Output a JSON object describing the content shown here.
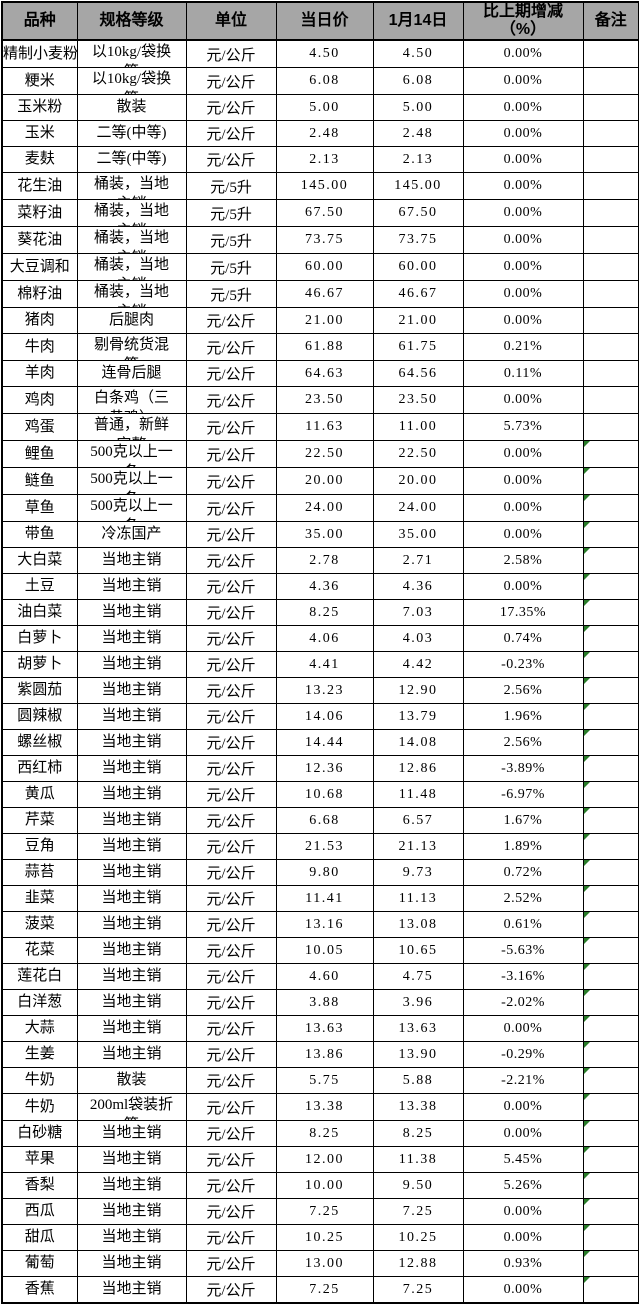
{
  "colors": {
    "header_bg": "#a6a6a6",
    "border": "#000000",
    "marker_green": "#2a7d2a",
    "page_bg": "#ffffff"
  },
  "table": {
    "columns": [
      {
        "id": "variety",
        "label": "品种"
      },
      {
        "id": "spec",
        "label": "规格等级"
      },
      {
        "id": "unit",
        "label": "单位"
      },
      {
        "id": "today",
        "label": "当日价"
      },
      {
        "id": "prev",
        "label": "1月14日"
      },
      {
        "id": "change",
        "label": "比上期增减\n（%）"
      },
      {
        "id": "remark",
        "label": "备注"
      }
    ],
    "rows": [
      {
        "name": "精制小麦粉",
        "spec": "以10kg/袋换",
        "spec2": "算",
        "unit": "元/公斤",
        "today": "4.50",
        "prev": "4.50",
        "change": "0.00%",
        "marker": false
      },
      {
        "name": "粳米",
        "spec": "以10kg/袋换",
        "spec2": "算",
        "unit": "元/公斤",
        "today": "6.08",
        "prev": "6.08",
        "change": "0.00%",
        "marker": false
      },
      {
        "name": "玉米粉",
        "spec": "散装",
        "spec2": "",
        "unit": "元/公斤",
        "today": "5.00",
        "prev": "5.00",
        "change": "0.00%",
        "marker": false
      },
      {
        "name": "玉米",
        "spec": "二等(中等)",
        "spec2": "",
        "unit": "元/公斤",
        "today": "2.48",
        "prev": "2.48",
        "change": "0.00%",
        "marker": false
      },
      {
        "name": "麦麸",
        "spec": "二等(中等)",
        "spec2": "",
        "unit": "元/公斤",
        "today": "2.13",
        "prev": "2.13",
        "change": "0.00%",
        "marker": false
      },
      {
        "name": "花生油",
        "spec": "桶装，当地",
        "spec2": "主销",
        "unit": "元/5升",
        "today": "145.00",
        "prev": "145.00",
        "change": "0.00%",
        "marker": false
      },
      {
        "name": "菜籽油",
        "spec": "桶装，当地",
        "spec2": "主销",
        "unit": "元/5升",
        "today": "67.50",
        "prev": "67.50",
        "change": "0.00%",
        "marker": false
      },
      {
        "name": "葵花油",
        "spec": "桶装，当地",
        "spec2": "主销",
        "unit": "元/5升",
        "today": "73.75",
        "prev": "73.75",
        "change": "0.00%",
        "marker": false
      },
      {
        "name": "大豆调和",
        "spec": "桶装，当地",
        "spec2": "主销",
        "unit": "元/5升",
        "today": "60.00",
        "prev": "60.00",
        "change": "0.00%",
        "marker": false
      },
      {
        "name": "棉籽油",
        "spec": "桶装，当地",
        "spec2": "主销",
        "unit": "元/5升",
        "today": "46.67",
        "prev": "46.67",
        "change": "0.00%",
        "marker": false
      },
      {
        "name": "猪肉",
        "spec": "后腿肉",
        "spec2": "",
        "unit": "元/公斤",
        "today": "21.00",
        "prev": "21.00",
        "change": "0.00%",
        "marker": false
      },
      {
        "name": "牛肉",
        "spec": "剔骨统货混",
        "spec2": "等",
        "unit": "元/公斤",
        "today": "61.88",
        "prev": "61.75",
        "change": "0.21%",
        "marker": false
      },
      {
        "name": "羊肉",
        "spec": "连骨后腿",
        "spec2": "",
        "unit": "元/公斤",
        "today": "64.63",
        "prev": "64.56",
        "change": "0.11%",
        "marker": false
      },
      {
        "name": "鸡肉",
        "spec": "白条鸡（三",
        "spec2": "黄鸡）",
        "unit": "元/公斤",
        "today": "23.50",
        "prev": "23.50",
        "change": "0.00%",
        "marker": false
      },
      {
        "name": "鸡蛋",
        "spec": "普通，新鲜",
        "spec2": "完整",
        "unit": "元/公斤",
        "today": "11.63",
        "prev": "11.00",
        "change": "5.73%",
        "marker": false
      },
      {
        "name": "鲤鱼",
        "spec": "500克以上一",
        "spec2": "条",
        "unit": "元/公斤",
        "today": "22.50",
        "prev": "22.50",
        "change": "0.00%",
        "marker": true
      },
      {
        "name": "鲢鱼",
        "spec": "500克以上一",
        "spec2": "条",
        "unit": "元/公斤",
        "today": "20.00",
        "prev": "20.00",
        "change": "0.00%",
        "marker": true
      },
      {
        "name": "草鱼",
        "spec": "500克以上一",
        "spec2": "条",
        "unit": "元/公斤",
        "today": "24.00",
        "prev": "24.00",
        "change": "0.00%",
        "marker": true
      },
      {
        "name": "带鱼",
        "spec": "冷冻国产",
        "spec2": "",
        "unit": "元/公斤",
        "today": "35.00",
        "prev": "35.00",
        "change": "0.00%",
        "marker": true
      },
      {
        "name": "大白菜",
        "spec": "当地主销",
        "spec2": "",
        "unit": "元/公斤",
        "today": "2.78",
        "prev": "2.71",
        "change": "2.58%",
        "marker": true
      },
      {
        "name": "土豆",
        "spec": "当地主销",
        "spec2": "",
        "unit": "元/公斤",
        "today": "4.36",
        "prev": "4.36",
        "change": "0.00%",
        "marker": true
      },
      {
        "name": "油白菜",
        "spec": "当地主销",
        "spec2": "",
        "unit": "元/公斤",
        "today": "8.25",
        "prev": "7.03",
        "change": "17.35%",
        "marker": true
      },
      {
        "name": "白萝卜",
        "spec": "当地主销",
        "spec2": "",
        "unit": "元/公斤",
        "today": "4.06",
        "prev": "4.03",
        "change": "0.74%",
        "marker": true
      },
      {
        "name": "胡萝卜",
        "spec": "当地主销",
        "spec2": "",
        "unit": "元/公斤",
        "today": "4.41",
        "prev": "4.42",
        "change": "-0.23%",
        "marker": true
      },
      {
        "name": "紫圆茄",
        "spec": "当地主销",
        "spec2": "",
        "unit": "元/公斤",
        "today": "13.23",
        "prev": "12.90",
        "change": "2.56%",
        "marker": true
      },
      {
        "name": "圆辣椒",
        "spec": "当地主销",
        "spec2": "",
        "unit": "元/公斤",
        "today": "14.06",
        "prev": "13.79",
        "change": "1.96%",
        "marker": true
      },
      {
        "name": "螺丝椒",
        "spec": "当地主销",
        "spec2": "",
        "unit": "元/公斤",
        "today": "14.44",
        "prev": "14.08",
        "change": "2.56%",
        "marker": true
      },
      {
        "name": "西红柿",
        "spec": "当地主销",
        "spec2": "",
        "unit": "元/公斤",
        "today": "12.36",
        "prev": "12.86",
        "change": "-3.89%",
        "marker": true
      },
      {
        "name": "黄瓜",
        "spec": "当地主销",
        "spec2": "",
        "unit": "元/公斤",
        "today": "10.68",
        "prev": "11.48",
        "change": "-6.97%",
        "marker": true
      },
      {
        "name": "芹菜",
        "spec": "当地主销",
        "spec2": "",
        "unit": "元/公斤",
        "today": "6.68",
        "prev": "6.57",
        "change": "1.67%",
        "marker": true
      },
      {
        "name": "豆角",
        "spec": "当地主销",
        "spec2": "",
        "unit": "元/公斤",
        "today": "21.53",
        "prev": "21.13",
        "change": "1.89%",
        "marker": true
      },
      {
        "name": "蒜苔",
        "spec": "当地主销",
        "spec2": "",
        "unit": "元/公斤",
        "today": "9.80",
        "prev": "9.73",
        "change": "0.72%",
        "marker": true
      },
      {
        "name": "韭菜",
        "spec": "当地主销",
        "spec2": "",
        "unit": "元/公斤",
        "today": "11.41",
        "prev": "11.13",
        "change": "2.52%",
        "marker": true
      },
      {
        "name": "菠菜",
        "spec": "当地主销",
        "spec2": "",
        "unit": "元/公斤",
        "today": "13.16",
        "prev": "13.08",
        "change": "0.61%",
        "marker": true
      },
      {
        "name": "花菜",
        "spec": "当地主销",
        "spec2": "",
        "unit": "元/公斤",
        "today": "10.05",
        "prev": "10.65",
        "change": "-5.63%",
        "marker": true
      },
      {
        "name": "莲花白",
        "spec": "当地主销",
        "spec2": "",
        "unit": "元/公斤",
        "today": "4.60",
        "prev": "4.75",
        "change": "-3.16%",
        "marker": true
      },
      {
        "name": "白洋葱",
        "spec": "当地主销",
        "spec2": "",
        "unit": "元/公斤",
        "today": "3.88",
        "prev": "3.96",
        "change": "-2.02%",
        "marker": true
      },
      {
        "name": "大蒜",
        "spec": "当地主销",
        "spec2": "",
        "unit": "元/公斤",
        "today": "13.63",
        "prev": "13.63",
        "change": "0.00%",
        "marker": true
      },
      {
        "name": "生姜",
        "spec": "当地主销",
        "spec2": "",
        "unit": "元/公斤",
        "today": "13.86",
        "prev": "13.90",
        "change": "-0.29%",
        "marker": true
      },
      {
        "name": "牛奶",
        "spec": "散装",
        "spec2": "",
        "unit": "元/公斤",
        "today": "5.75",
        "prev": "5.88",
        "change": "-2.21%",
        "marker": true
      },
      {
        "name": "牛奶",
        "spec": "200ml袋装折",
        "spec2": "算",
        "unit": "元/公斤",
        "today": "13.38",
        "prev": "13.38",
        "change": "0.00%",
        "marker": true
      },
      {
        "name": "白砂糖",
        "spec": "当地主销",
        "spec2": "",
        "unit": "元/公斤",
        "today": "8.25",
        "prev": "8.25",
        "change": "0.00%",
        "marker": true
      },
      {
        "name": "苹果",
        "spec": "当地主销",
        "spec2": "",
        "unit": "元/公斤",
        "today": "12.00",
        "prev": "11.38",
        "change": "5.45%",
        "marker": true
      },
      {
        "name": "香梨",
        "spec": "当地主销",
        "spec2": "",
        "unit": "元/公斤",
        "today": "10.00",
        "prev": "9.50",
        "change": "5.26%",
        "marker": true
      },
      {
        "name": "西瓜",
        "spec": "当地主销",
        "spec2": "",
        "unit": "元/公斤",
        "today": "7.25",
        "prev": "7.25",
        "change": "0.00%",
        "marker": true
      },
      {
        "name": "甜瓜",
        "spec": "当地主销",
        "spec2": "",
        "unit": "元/公斤",
        "today": "10.25",
        "prev": "10.25",
        "change": "0.00%",
        "marker": true
      },
      {
        "name": "葡萄",
        "spec": "当地主销",
        "spec2": "",
        "unit": "元/公斤",
        "today": "13.00",
        "prev": "12.88",
        "change": "0.93%",
        "marker": true
      },
      {
        "name": "香蕉",
        "spec": "当地主销",
        "spec2": "",
        "unit": "元/公斤",
        "today": "7.25",
        "prev": "7.25",
        "change": "0.00%",
        "marker": true
      }
    ]
  }
}
